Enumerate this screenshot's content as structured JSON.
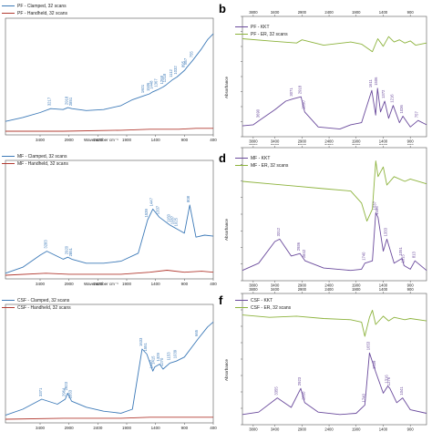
{
  "colors": {
    "blue": "#3d7ab8",
    "red": "#b23b32",
    "green": "#8db33d",
    "purple": "#6a4a9c"
  },
  "panels": [
    {
      "id": "a",
      "letter": "",
      "legend": [
        "PF - Clamped, 32 scans",
        "PF - Handheld, 32 scans"
      ],
      "xlabel": "Wavenumber cm⁻¹",
      "xticks": [
        "3400",
        "2900",
        "2400",
        "1900",
        "1400",
        "900",
        "400"
      ],
      "peaks": [
        "3217",
        "2918",
        "2851",
        "1601",
        "1506",
        "1448",
        "1367",
        "1268",
        "1218",
        "1112",
        "1032",
        "895",
        "857",
        "755"
      ]
    },
    {
      "id": "b",
      "letter": "b",
      "legend": [
        "PF - KKT",
        "PF - ER, 32 scans"
      ],
      "ylabel": "Absorbance",
      "xticks_top": [
        "3800",
        "3400",
        "2900",
        "2400",
        "1900",
        "1400",
        "900"
      ],
      "xticks_bottom": [
        "3800",
        "3400",
        "2900",
        "2400",
        "1900",
        "1400",
        "900"
      ],
      "peaks": [
        "3071",
        "3690",
        "2918",
        "2850",
        "1611",
        "1506",
        "1372",
        "1216",
        "1036",
        "757"
      ]
    },
    {
      "id": "c",
      "letter": "",
      "legend": [
        "MF - Clamped, 32 scans",
        "MF - Handheld, 32 scans"
      ],
      "xlabel": "Wavenumber cm⁻¹",
      "xticks": [
        "3400",
        "2900",
        "2400",
        "1900",
        "1400",
        "900",
        "400"
      ],
      "peaks": [
        "3283",
        "2920",
        "2851",
        "1539",
        "1447",
        "1337",
        "1150",
        "1087",
        "1025",
        "808"
      ]
    },
    {
      "id": "d",
      "letter": "d",
      "legend": [
        "MF - KKT",
        "MF - ER, 32 scans"
      ],
      "ylabel": "Absorbance",
      "xticks_top": [
        "3800",
        "3400",
        "2900",
        "2400",
        "1900",
        "1400",
        "900"
      ],
      "xticks_bottom": [
        "3800",
        "3400",
        "2900",
        "2400",
        "1900",
        "1400",
        "900"
      ],
      "peaks": [
        "3312",
        "2936",
        "2842",
        "1740",
        "1537",
        "1496",
        "1333",
        "1051",
        "1015",
        "813"
      ]
    },
    {
      "id": "e",
      "letter": "",
      "legend": [
        "CSF - Clamped, 32 scans",
        "CSF - Handheld, 32 scans"
      ],
      "xlabel": "Wavenumber cm⁻¹",
      "xticks": [
        "3400",
        "2900",
        "2400",
        "1900",
        "1400",
        "900",
        "400"
      ],
      "peaks": [
        "3371",
        "2964",
        "2923",
        "2853",
        "1633",
        "1551",
        "1447",
        "1415",
        "1329",
        "1270",
        "1153",
        "1039",
        "665"
      ]
    },
    {
      "id": "f",
      "letter": "f",
      "legend": [
        "CSF - KKT",
        "CSF - ER, 32 scans"
      ],
      "ylabel": "Absorbance",
      "xticks_top": [
        "3800",
        "3400",
        "2900",
        "2400",
        "1900",
        "1400",
        "900"
      ],
      "xticks_bottom": [
        "3800",
        "3400",
        "2900",
        "2400",
        "1900",
        "1400",
        "900"
      ],
      "peaks": [
        "3355",
        "2923",
        "2850",
        "1740",
        "1653",
        "1539",
        "1316",
        "1276",
        "1041"
      ]
    }
  ],
  "chart_data": [
    {
      "type": "line",
      "panel": "a",
      "xlabel": "Wavenumber cm⁻¹",
      "xlim": [
        4000,
        400
      ],
      "series": [
        {
          "name": "PF - Clamped, 32 scans",
          "x": [
            4000,
            3700,
            3400,
            3217,
            3000,
            2918,
            2851,
            2600,
            2300,
            2000,
            1800,
            1601,
            1506,
            1448,
            1367,
            1268,
            1218,
            1112,
            1032,
            895,
            857,
            755,
            600,
            500,
            400
          ],
          "y": [
            0.1,
            0.14,
            0.19,
            0.23,
            0.22,
            0.24,
            0.23,
            0.21,
            0.22,
            0.26,
            0.32,
            0.36,
            0.38,
            0.4,
            0.42,
            0.45,
            0.47,
            0.52,
            0.55,
            0.62,
            0.65,
            0.72,
            0.84,
            0.93,
            0.99
          ]
        },
        {
          "name": "PF - Handheld, 32 scans",
          "x": [
            4000,
            3000,
            2000,
            1500,
            1000,
            700,
            400
          ],
          "y": [
            0.0,
            0.0,
            0.01,
            0.02,
            0.02,
            0.03,
            0.03
          ]
        }
      ]
    },
    {
      "type": "line",
      "panel": "b",
      "xlim": [
        4000,
        600
      ],
      "series": [
        {
          "name": "PF - ER, 32 scans",
          "x": [
            4000,
            3500,
            3000,
            2900,
            2500,
            2000,
            1800,
            1600,
            1500,
            1400,
            1300,
            1200,
            1100,
            1000,
            900,
            800,
            600
          ],
          "y": [
            0.86,
            0.84,
            0.82,
            0.85,
            0.8,
            0.83,
            0.81,
            0.74,
            0.86,
            0.79,
            0.88,
            0.83,
            0.85,
            0.82,
            0.84,
            0.8,
            0.82
          ]
        },
        {
          "name": "PF - KKT",
          "x": [
            4000,
            3800,
            3690,
            3400,
            3200,
            3071,
            2918,
            2850,
            2600,
            2200,
            2000,
            1800,
            1611,
            1540,
            1506,
            1450,
            1372,
            1300,
            1216,
            1100,
            1036,
            900,
            757,
            600
          ],
          "y": [
            0.05,
            0.06,
            0.1,
            0.2,
            0.28,
            0.3,
            0.32,
            0.18,
            0.04,
            0.02,
            0.06,
            0.08,
            0.38,
            0.15,
            0.4,
            0.18,
            0.28,
            0.12,
            0.24,
            0.08,
            0.14,
            0.04,
            0.1,
            0.06
          ]
        }
      ]
    },
    {
      "type": "line",
      "panel": "c",
      "xlabel": "Wavenumber cm⁻¹",
      "xlim": [
        4000,
        400
      ],
      "series": [
        {
          "name": "MF - Clamped, 32 scans",
          "x": [
            4000,
            3700,
            3400,
            3283,
            3000,
            2920,
            2851,
            2600,
            2300,
            2000,
            1700,
            1539,
            1447,
            1337,
            1150,
            1087,
            1025,
            900,
            808,
            700,
            550,
            400
          ],
          "y": [
            0.02,
            0.08,
            0.2,
            0.24,
            0.16,
            0.18,
            0.16,
            0.12,
            0.12,
            0.14,
            0.22,
            0.55,
            0.66,
            0.58,
            0.5,
            0.48,
            0.46,
            0.42,
            0.7,
            0.38,
            0.4,
            0.39
          ]
        },
        {
          "name": "MF - Handheld, 32 scans",
          "x": [
            4000,
            3300,
            2900,
            2000,
            1500,
            1200,
            900,
            600,
            400
          ],
          "y": [
            0.0,
            0.02,
            0.01,
            0.01,
            0.03,
            0.05,
            0.03,
            0.04,
            0.03
          ]
        }
      ]
    },
    {
      "type": "line",
      "panel": "d",
      "xlim": [
        4000,
        600
      ],
      "series": [
        {
          "name": "MF - ER, 32 scans",
          "x": [
            4000,
            3500,
            3000,
            2500,
            2000,
            1800,
            1700,
            1600,
            1537,
            1496,
            1400,
            1333,
            1200,
            1000,
            900,
            600
          ],
          "y": [
            0.78,
            0.76,
            0.74,
            0.72,
            0.7,
            0.6,
            0.45,
            0.55,
            0.95,
            0.82,
            0.9,
            0.75,
            0.82,
            0.78,
            0.8,
            0.76
          ]
        },
        {
          "name": "MF - KKT",
          "x": [
            4000,
            3700,
            3400,
            3312,
            3100,
            2936,
            2842,
            2500,
            2000,
            1800,
            1740,
            1600,
            1537,
            1496,
            1400,
            1333,
            1200,
            1051,
            1015,
            900,
            813,
            600
          ],
          "y": [
            0.04,
            0.1,
            0.28,
            0.3,
            0.16,
            0.18,
            0.12,
            0.06,
            0.04,
            0.05,
            0.1,
            0.12,
            0.52,
            0.48,
            0.2,
            0.3,
            0.1,
            0.14,
            0.08,
            0.05,
            0.12,
            0.04
          ]
        }
      ]
    },
    {
      "type": "line",
      "panel": "e",
      "xlabel": "Wavenumber cm⁻¹",
      "xlim": [
        4000,
        400
      ],
      "series": [
        {
          "name": "CSF - Clamped, 32 scans",
          "x": [
            4000,
            3700,
            3371,
            3100,
            2964,
            2923,
            2853,
            2600,
            2300,
            2000,
            1800,
            1633,
            1551,
            1447,
            1415,
            1329,
            1270,
            1153,
            1039,
            900,
            665,
            500,
            400
          ],
          "y": [
            0.04,
            0.1,
            0.2,
            0.15,
            0.2,
            0.26,
            0.18,
            0.12,
            0.08,
            0.06,
            0.1,
            0.7,
            0.65,
            0.48,
            0.52,
            0.55,
            0.5,
            0.56,
            0.58,
            0.62,
            0.8,
            0.92,
            0.97
          ]
        },
        {
          "name": "CSF - Handheld, 32 scans",
          "x": [
            4000,
            3000,
            2000,
            1500,
            1000,
            400
          ],
          "y": [
            0.0,
            0.01,
            0.01,
            0.02,
            0.02,
            0.02
          ]
        }
      ]
    },
    {
      "type": "line",
      "panel": "f",
      "xlim": [
        4000,
        600
      ],
      "series": [
        {
          "name": "CSF - ER, 32 scans",
          "x": [
            4000,
            3500,
            3000,
            2500,
            2000,
            1800,
            1740,
            1653,
            1600,
            1539,
            1400,
            1300,
            1200,
            1000,
            900,
            600
          ],
          "y": [
            0.88,
            0.86,
            0.87,
            0.85,
            0.84,
            0.82,
            0.7,
            0.86,
            0.92,
            0.8,
            0.87,
            0.83,
            0.86,
            0.84,
            0.85,
            0.83
          ]
        },
        {
          "name": "CSF - KKT",
          "x": [
            4000,
            3700,
            3355,
            3100,
            2923,
            2850,
            2600,
            2200,
            1900,
            1740,
            1653,
            1539,
            1400,
            1316,
            1276,
            1150,
            1041,
            900,
            600
          ],
          "y": [
            0.04,
            0.06,
            0.18,
            0.1,
            0.26,
            0.14,
            0.06,
            0.04,
            0.05,
            0.12,
            0.56,
            0.4,
            0.22,
            0.28,
            0.26,
            0.14,
            0.18,
            0.08,
            0.05
          ]
        }
      ]
    }
  ]
}
